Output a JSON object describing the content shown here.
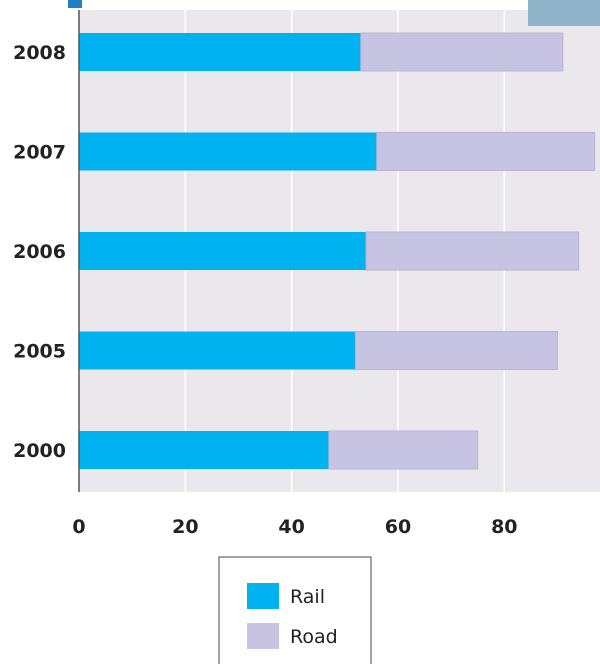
{
  "chart_data": {
    "type": "bar",
    "orientation": "horizontal",
    "stacked": true,
    "categories": [
      "2008",
      "2007",
      "2006",
      "2005",
      "2000"
    ],
    "series": [
      {
        "name": "Rail",
        "values": [
          53,
          56,
          54,
          52,
          47
        ],
        "color": "#00b2ef"
      },
      {
        "name": "Road",
        "values": [
          38,
          41,
          40,
          38,
          28
        ],
        "color": "#c7c3e2"
      }
    ],
    "xlim": [
      0,
      98
    ],
    "x_ticks": [
      0,
      20,
      40,
      60,
      80
    ],
    "grid": true,
    "legend_position": "bottom"
  }
}
